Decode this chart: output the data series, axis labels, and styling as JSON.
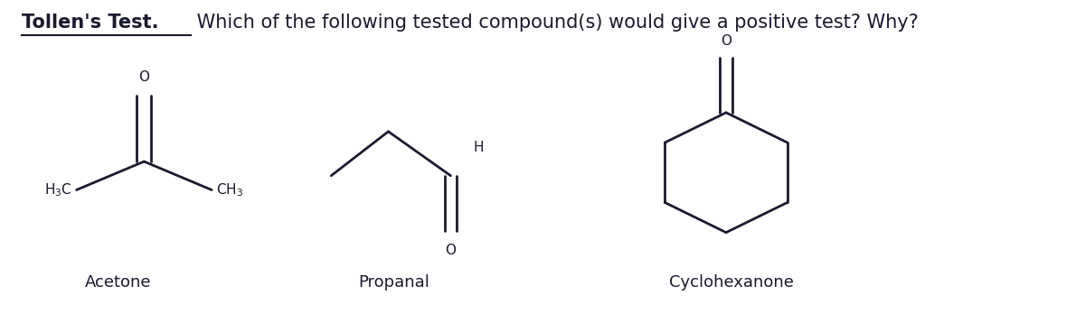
{
  "title_bold": "Tollen's Test.",
  "title_normal": " Which of the following tested compound(s) would give a positive test? Why?",
  "bg_color": "#ffffff",
  "line_color": "#1a1a2e",
  "compounds": [
    "Acetone",
    "Propanal",
    "Cyclohexanone"
  ],
  "title_fontsize": 15,
  "label_fontsize": 13,
  "lw": 2.0
}
